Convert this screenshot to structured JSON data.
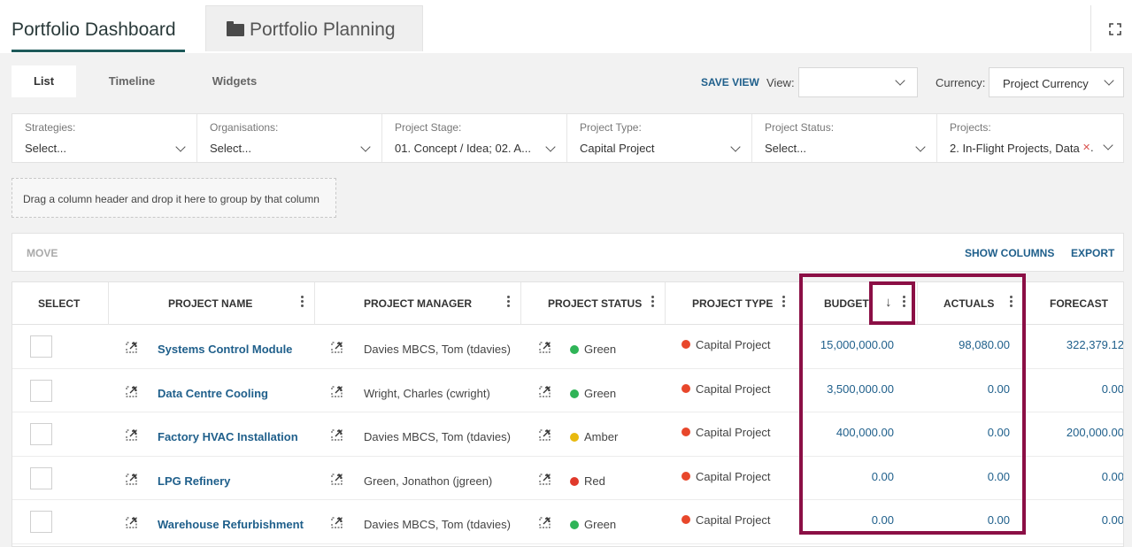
{
  "tabs": {
    "dashboard": "Portfolio Dashboard",
    "planning": "Portfolio Planning"
  },
  "view_tabs": [
    "List",
    "Timeline",
    "Widgets"
  ],
  "toolbar": {
    "save_view": "SAVE VIEW",
    "view_label": "View:",
    "view_value": "",
    "currency_label": "Currency:",
    "currency_value": "Project Currency"
  },
  "filters": [
    {
      "label": "Strategies:",
      "value": "Select..."
    },
    {
      "label": "Organisations:",
      "value": "Select..."
    },
    {
      "label": "Project Stage:",
      "value": "01. Concept / Idea; 02. A..."
    },
    {
      "label": "Project Type:",
      "value": "Capital Project"
    },
    {
      "label": "Project Status:",
      "value": "Select..."
    },
    {
      "label": "Projects:",
      "value": "2. In-Flight Projects, Data"
    }
  ],
  "group_hint": "Drag a column header and drop it here to group by that column",
  "actions": {
    "move": "MOVE",
    "show_columns": "SHOW COLUMNS",
    "export": "EXPORT"
  },
  "columns": {
    "select": "SELECT",
    "name": "PROJECT NAME",
    "manager": "PROJECT MANAGER",
    "status": "PROJECT STATUS",
    "type": "PROJECT TYPE",
    "budget": "BUDGET",
    "actuals": "ACTUALS",
    "forecast": "FORECAST"
  },
  "rows": [
    {
      "name": "Systems Control Module",
      "manager": "Davies MBCS, Tom (tdavies)",
      "status": "Green",
      "status_color": "#2fb457",
      "type": "Capital Project",
      "budget": "15,000,000.00",
      "actuals": "98,080.00",
      "forecast": "322,379.12"
    },
    {
      "name": "Data Centre Cooling",
      "manager": "Wright, Charles (cwright)",
      "status": "Green",
      "status_color": "#2fb457",
      "type": "Capital Project",
      "budget": "3,500,000.00",
      "actuals": "0.00",
      "forecast": "0.00"
    },
    {
      "name": "Factory HVAC Installation",
      "manager": "Davies MBCS, Tom (tdavies)",
      "status": "Amber",
      "status_color": "#e8b90e",
      "type": "Capital Project",
      "budget": "400,000.00",
      "actuals": "0.00",
      "forecast": "200,000.00"
    },
    {
      "name": "LPG Refinery",
      "manager": "Green, Jonathon (jgreen)",
      "status": "Red",
      "status_color": "#e0392b",
      "type": "Capital Project",
      "budget": "0.00",
      "actuals": "0.00",
      "forecast": "0.00"
    },
    {
      "name": "Warehouse Refurbishment",
      "manager": "Davies MBCS, Tom (tdavies)",
      "status": "Green",
      "status_color": "#2fb457",
      "type": "Capital Project",
      "budget": "0.00",
      "actuals": "0.00",
      "forecast": "0.00"
    }
  ],
  "colors": {
    "accent": "#1e5a5a",
    "link": "#1f5f8b",
    "highlight": "#8b0f45",
    "type_dot": "#e8472b"
  }
}
